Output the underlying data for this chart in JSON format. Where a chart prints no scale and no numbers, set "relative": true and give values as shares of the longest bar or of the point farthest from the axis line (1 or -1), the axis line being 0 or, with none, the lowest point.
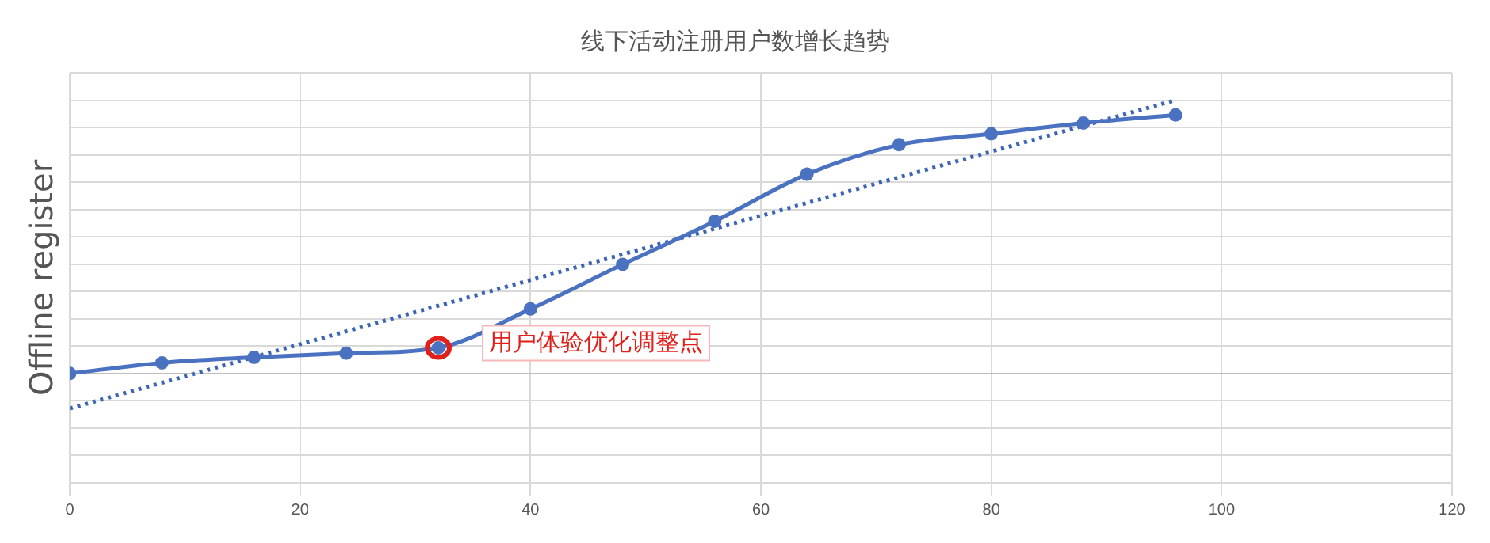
{
  "chart_data": {
    "type": "line",
    "title": "线下活动注册用户数增长趋势",
    "ylabel": "Offline register",
    "relative": true,
    "xlim": [
      0,
      120
    ],
    "xticks": [
      0,
      20,
      40,
      60,
      80,
      100,
      120
    ],
    "grid": true,
    "legend": false,
    "series": [
      {
        "type": "line",
        "color": "#4a72c0",
        "marker": "circle",
        "line_style": "solid",
        "x": [
          0,
          8,
          16,
          24,
          32,
          40,
          48,
          56,
          64,
          72,
          80,
          88,
          96
        ],
        "values": [
          0,
          0.039,
          0.059,
          0.074,
          0.094,
          0.236,
          0.399,
          0.557,
          0.729,
          0.837,
          0.877,
          0.916,
          0.946
        ]
      },
      {
        "type": "line",
        "color": "#3b64b3",
        "marker": "none",
        "line_style": "dotted",
        "x": [
          0,
          96
        ],
        "values": [
          -0.128,
          1
        ]
      }
    ],
    "annotations": [
      {
        "text": "用户体验优化调整点",
        "x": 32,
        "y": 0.094
      }
    ]
  }
}
